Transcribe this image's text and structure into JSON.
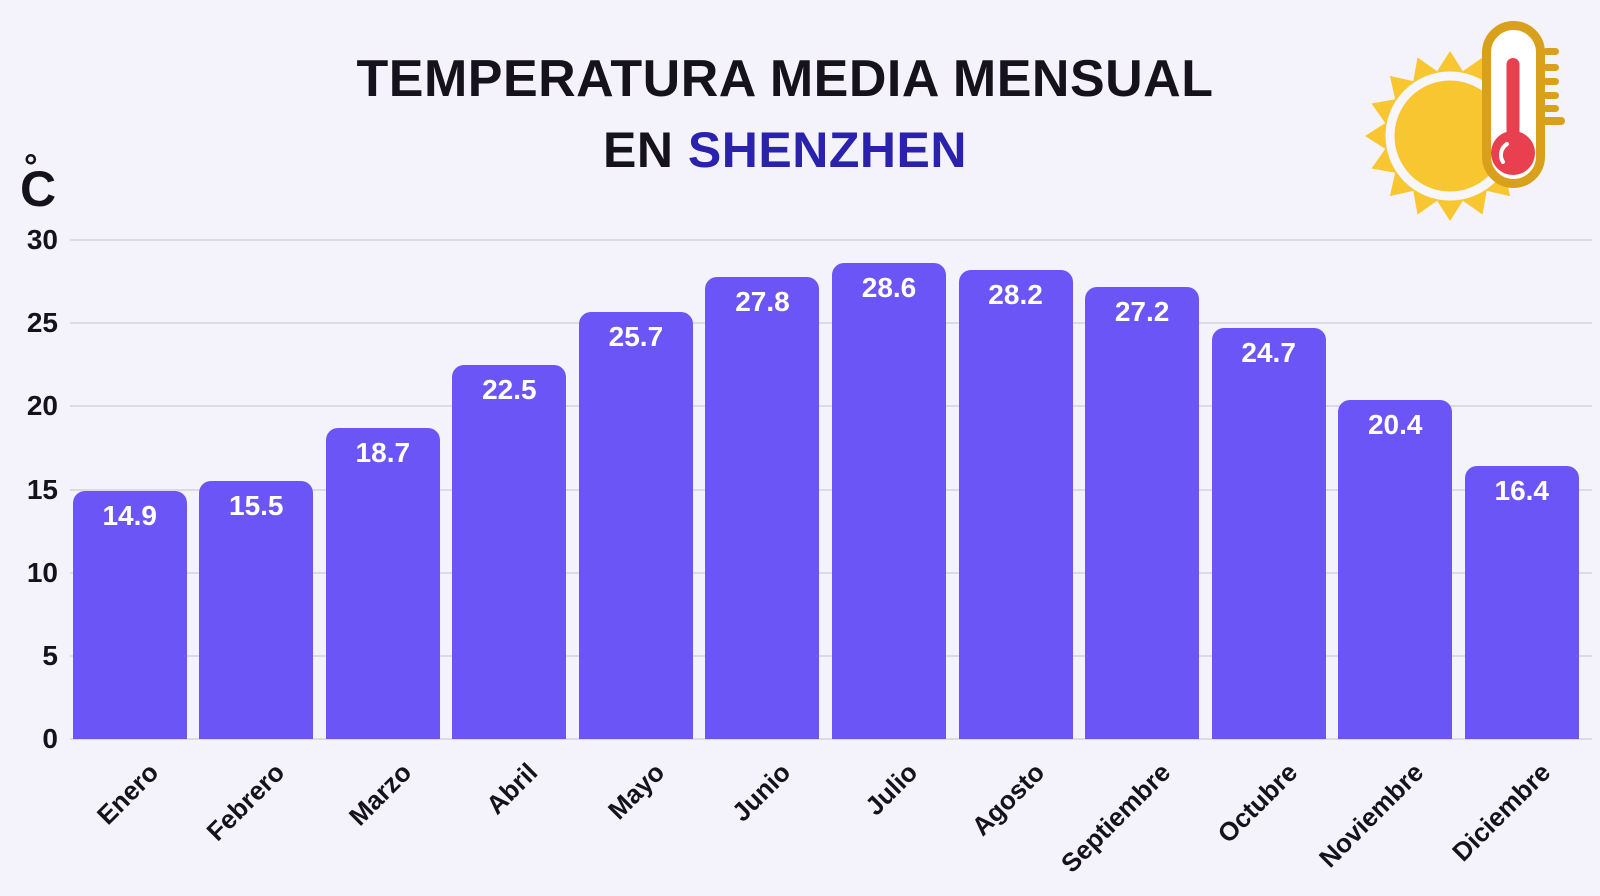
{
  "title": {
    "line1": "TEMPERATURA MEDIA MENSUAL",
    "line2_prefix": "EN ",
    "line2_highlight": "SHENZHEN"
  },
  "y_axis": {
    "unit_degree": "°",
    "unit_letter": "C",
    "ticks": [
      0,
      5,
      10,
      15,
      20,
      25,
      30
    ]
  },
  "chart_data": {
    "type": "bar",
    "title": "Temperatura media mensual en Shenzhen",
    "categories": [
      "Enero",
      "Febrero",
      "Marzo",
      "Abril",
      "Mayo",
      "Junio",
      "Julio",
      "Agosto",
      "Septiembre",
      "Octubre",
      "Noviembre",
      "Diciembre"
    ],
    "values": [
      14.9,
      15.5,
      18.7,
      22.5,
      25.7,
      27.8,
      28.6,
      28.2,
      27.2,
      24.7,
      20.4,
      16.4
    ],
    "xlabel": "",
    "ylabel": "°C",
    "ylim": [
      0,
      30
    ],
    "grid": true,
    "legend": "none",
    "bar_color": "#6C55F7",
    "value_label_color": "#FFFFFF"
  },
  "colors": {
    "background": "#F4F3FB",
    "gridline": "#DCDBE4",
    "text": "#15121E",
    "highlight": "#2A22AC",
    "bar": "#6C55F7"
  },
  "icon": {
    "name": "sun-thermometer",
    "sun_color": "#F8C630",
    "ring_color": "#F7F6FC",
    "outline_color": "#D9A01B",
    "glass_color": "#FFFFFF",
    "mercury_color": "#E8404E"
  }
}
